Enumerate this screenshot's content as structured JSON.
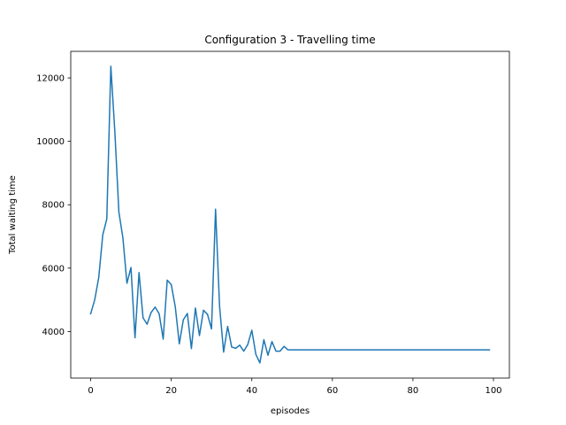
{
  "chart_data": {
    "type": "line",
    "title": "Configuration 3 - Travelling time",
    "xlabel": "episodes",
    "ylabel": "Total waiting time",
    "xlim": [
      -4.95,
      103.95
    ],
    "ylim": [
      2530,
      12840
    ],
    "xticks": [
      0,
      20,
      40,
      60,
      80,
      100
    ],
    "yticks": [
      4000,
      6000,
      8000,
      10000,
      12000
    ],
    "grid": false,
    "line_color": "#1f77b4",
    "series": [
      {
        "x": [
          0,
          1,
          2,
          3,
          4,
          5,
          6,
          7,
          8,
          9,
          10,
          11,
          12,
          13,
          14,
          15,
          16,
          17,
          18,
          19,
          20,
          21,
          22,
          23,
          24,
          25,
          26,
          27,
          28,
          29,
          30,
          31,
          32,
          33,
          34,
          35,
          36,
          37,
          38,
          39,
          40,
          41,
          42,
          43,
          44,
          45,
          46,
          47,
          48,
          49,
          50,
          51,
          52,
          53,
          54,
          55,
          56,
          57,
          58,
          59,
          60,
          61,
          62,
          63,
          64,
          65,
          66,
          67,
          68,
          69,
          70,
          71,
          72,
          73,
          74,
          75,
          76,
          77,
          78,
          79,
          80,
          81,
          82,
          83,
          84,
          85,
          86,
          87,
          88,
          89,
          90,
          91,
          92,
          93,
          94,
          95,
          96,
          97,
          98,
          99
        ],
        "values": [
          4560,
          5000,
          5700,
          7050,
          7550,
          12370,
          10300,
          7770,
          6950,
          5520,
          6020,
          3800,
          5860,
          4430,
          4230,
          4600,
          4770,
          4560,
          3760,
          5620,
          5480,
          4780,
          3610,
          4370,
          4570,
          3460,
          4740,
          3870,
          4670,
          4540,
          4080,
          7860,
          4790,
          3350,
          4160,
          3510,
          3470,
          3570,
          3380,
          3590,
          4040,
          3280,
          3010,
          3740,
          3250,
          3680,
          3380,
          3380,
          3530,
          3420,
          3420,
          3420,
          3420,
          3420,
          3420,
          3420,
          3420,
          3420,
          3420,
          3420,
          3420,
          3420,
          3420,
          3420,
          3420,
          3420,
          3420,
          3420,
          3420,
          3420,
          3420,
          3420,
          3420,
          3420,
          3420,
          3420,
          3420,
          3420,
          3420,
          3420,
          3420,
          3420,
          3420,
          3420,
          3420,
          3420,
          3420,
          3420,
          3420,
          3420,
          3420,
          3420,
          3420,
          3420,
          3420,
          3420,
          3420,
          3420,
          3420,
          3420
        ]
      }
    ]
  }
}
